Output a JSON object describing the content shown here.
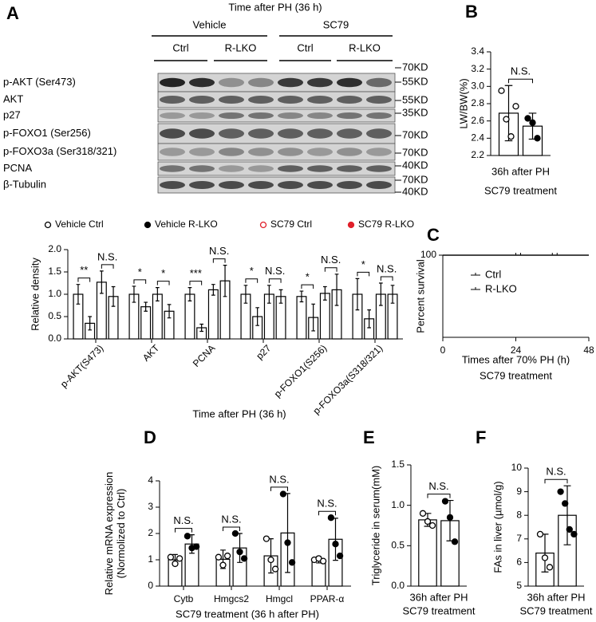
{
  "chart_data": [
    {
      "type": "blot",
      "panel": "A",
      "title": "Time after PH (36 h)",
      "groups": [
        "Vehicle",
        "SC79"
      ],
      "lanes": [
        "Ctrl",
        "R-LKO",
        "Ctrl",
        "R-LKO"
      ],
      "rows": [
        "p-AKT (Ser473)",
        "AKT",
        "p27",
        "p-FOXO1 (Ser256)",
        "p-FOXO3a (Ser318/321)",
        "PCNA",
        "β-Tubulin"
      ],
      "markers": [
        "70KD",
        "55KD",
        "55KD",
        "35KD",
        "70KD",
        "70KD",
        "40KD",
        "70KD",
        "40KD"
      ]
    },
    {
      "type": "bar",
      "ylabel": [
        "Relative density"
      ],
      "xlabel": [
        "Time after PH (36 h)"
      ],
      "categories": [
        "p-AKT(S473)",
        "AKT",
        "PCNA",
        "p27",
        "p-FOXO1(S256)",
        "p-FOXO3a(S318/321)"
      ],
      "ylim": [
        0,
        2.0
      ],
      "yticks": [
        {
          "value": 0,
          "label": "0.0"
        },
        {
          "value": 0.5,
          "label": "0.5"
        },
        {
          "value": 1.0,
          "label": "1.0"
        },
        {
          "value": 1.5,
          "label": "1.5"
        },
        {
          "value": 2.0,
          "label": "2.0"
        }
      ],
      "series": [
        {
          "name": "Vehicle Ctrl",
          "color": "#000000",
          "marker": "open",
          "values": [
            1.0,
            1.0,
            1.0,
            1.0,
            0.95,
            1.0
          ],
          "errors": [
            0.22,
            0.18,
            0.15,
            0.2,
            0.12,
            0.35
          ]
        },
        {
          "name": "Vehicle R-LKO",
          "color": "#000000",
          "marker": "filled",
          "values": [
            0.35,
            0.72,
            0.25,
            0.5,
            0.48,
            0.45
          ],
          "errors": [
            0.15,
            0.1,
            0.08,
            0.2,
            0.3,
            0.2
          ]
        },
        {
          "name": "SC79 Ctrl",
          "color": "#e0202a",
          "marker": "open",
          "values": [
            1.27,
            1.0,
            1.1,
            1.0,
            1.02,
            1.0
          ],
          "errors": [
            0.25,
            0.15,
            0.12,
            0.2,
            0.15,
            0.25
          ]
        },
        {
          "name": "SC79 R-LKO",
          "color": "#e0202a",
          "marker": "filled",
          "values": [
            0.95,
            0.62,
            1.3,
            0.95,
            1.1,
            1.0
          ],
          "errors": [
            0.22,
            0.15,
            0.35,
            0.15,
            0.35,
            0.2
          ]
        }
      ],
      "significance": [
        [
          "**",
          "N.S."
        ],
        [
          "*",
          "*"
        ],
        [
          "***",
          "N.S."
        ],
        [
          "*",
          "N.S."
        ],
        [
          "*",
          "N.S."
        ],
        [
          "*",
          "N.S."
        ]
      ]
    },
    {
      "type": "bar",
      "panel": "B",
      "ylabel": [
        "LW/BW(%)"
      ],
      "xlabel": [
        "36h after PH",
        "SC79 treatment"
      ],
      "categories": [
        null
      ],
      "ylim": [
        2.2,
        3.4
      ],
      "yticks": [
        2.2,
        2.4,
        2.6,
        2.8,
        {
          "value": 3.0,
          "label": "3.0"
        },
        3.2,
        3.4
      ],
      "series": [
        {
          "color": "#000000",
          "marker": "open",
          "values": [
            2.69
          ],
          "errors": [
            0.32
          ],
          "points": [
            [
              2.95,
              2.62,
              2.42,
              2.77
            ]
          ]
        },
        {
          "color": "#000000",
          "marker": "filled",
          "values": [
            2.54
          ],
          "errors": [
            0.15
          ],
          "points": [
            [
              2.63,
              2.58,
              2.4
            ]
          ]
        }
      ],
      "significance": [
        [
          "N.S."
        ]
      ]
    },
    {
      "type": "line",
      "panel": "C",
      "ylabel": [
        "Percent survival"
      ],
      "xlabel": [
        "Times after 70% PH (h)",
        "SC79 treatment"
      ],
      "xlim": [
        0,
        48
      ],
      "xticks": [
        0,
        24,
        48
      ],
      "ylim": [
        0,
        100
      ],
      "yticks": [
        100
      ],
      "series": [
        {
          "name": "Ctrl",
          "color": "#000000",
          "x": [
            0,
            48
          ],
          "values": [
            100,
            100
          ]
        },
        {
          "name": "R-LKO",
          "color": "#000000",
          "x": [
            0,
            48
          ],
          "values": [
            100,
            100
          ]
        }
      ]
    },
    {
      "type": "bar",
      "panel": "D",
      "ylabel": [
        "Relative mRNA expression",
        "(Normolized to Ctrl)"
      ],
      "xlabel": [
        "SC79 treatment (36 h after PH)"
      ],
      "categories": [
        "Cytb",
        "Hmgcs2",
        "Hmgcl",
        "PPAR-α"
      ],
      "ylim": [
        0,
        4
      ],
      "yticks": [
        0,
        1,
        2,
        3,
        4
      ],
      "series": [
        {
          "color": "#000000",
          "marker": "open",
          "values": [
            1.0,
            1.02,
            1.15,
            1.0
          ],
          "errors": [
            0.2,
            0.35,
            0.65,
            0.12
          ],
          "points": [
            [
              1.1,
              0.85,
              1.05
            ],
            [
              1.1,
              0.8,
              1.15
            ],
            [
              1.8,
              1.0,
              0.65
            ],
            [
              1.0,
              1.05,
              0.95
            ]
          ]
        },
        {
          "color": "#000000",
          "marker": "filled",
          "values": [
            1.6,
            1.45,
            2.02,
            1.78
          ],
          "errors": [
            0.35,
            0.55,
            1.5,
            0.8
          ],
          "points": [
            [
              1.9,
              1.45,
              1.5
            ],
            [
              2.0,
              1.3,
              1.05
            ],
            [
              3.5,
              1.65,
              0.9
            ],
            [
              2.6,
              1.6,
              1.15
            ]
          ]
        }
      ],
      "significance": [
        [
          "N.S."
        ],
        [
          "N.S."
        ],
        [
          "N.S."
        ],
        [
          "N.S."
        ]
      ]
    },
    {
      "type": "bar",
      "panel": "E",
      "ylabel": [
        "Triglyceride in serum(mM)"
      ],
      "xlabel": [
        "36h after PH",
        "SC79 treatment"
      ],
      "categories": [
        null
      ],
      "ylim": [
        0,
        1.5
      ],
      "yticks": [
        {
          "value": 0,
          "label": "0.0"
        },
        0.5,
        {
          "value": 1.0,
          "label": "1.0"
        },
        1.5
      ],
      "series": [
        {
          "color": "#000000",
          "marker": "open",
          "values": [
            0.82
          ],
          "errors": [
            0.08
          ],
          "points": [
            [
              0.9,
              0.8,
              0.75
            ]
          ]
        },
        {
          "color": "#000000",
          "marker": "filled",
          "values": [
            0.81
          ],
          "errors": [
            0.25
          ],
          "points": [
            [
              1.05,
              0.85,
              0.55
            ]
          ]
        }
      ],
      "significance": [
        [
          "N.S."
        ]
      ]
    },
    {
      "type": "bar",
      "panel": "F",
      "ylabel": [
        "FAs in liver (µmol/g)"
      ],
      "xlabel": [
        "36h after PH",
        "SC79 treatment"
      ],
      "categories": [
        null
      ],
      "ylim": [
        5,
        10
      ],
      "yticks": [
        5,
        6,
        7,
        8,
        9,
        10
      ],
      "series": [
        {
          "color": "#000000",
          "marker": "open",
          "values": [
            6.4
          ],
          "errors": [
            0.8
          ],
          "points": [
            [
              7.2,
              6.2,
              5.8
            ]
          ]
        },
        {
          "color": "#000000",
          "marker": "filled",
          "values": [
            8.0
          ],
          "errors": [
            1.25
          ],
          "points": [
            [
              9.0,
              8.5,
              7.4,
              7.2
            ]
          ]
        }
      ],
      "significance": [
        [
          "N.S."
        ]
      ]
    }
  ]
}
